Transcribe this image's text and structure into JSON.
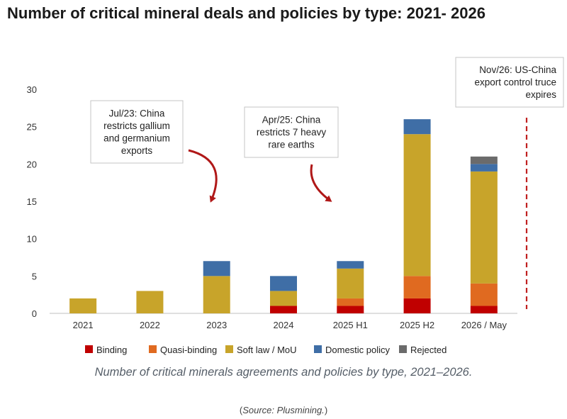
{
  "page": {
    "title": "Number of critical mineral deals and policies by type: 2021- 2026",
    "caption": "Number of critical minerals agreements and policies by type, 2021–2026.",
    "source_open": "(",
    "source_label": "Source: Plusmining.",
    "source_close": ")"
  },
  "chart_data": {
    "type": "bar",
    "stacked": true,
    "categories": [
      "2021",
      "2022",
      "2023",
      "2024",
      "2025 H1",
      "2025 H2",
      "2026 / May"
    ],
    "series": [
      {
        "name": "Binding",
        "color": "#c00000",
        "values": [
          0,
          0,
          0,
          1,
          1,
          2,
          1
        ]
      },
      {
        "name": "Quasi-binding",
        "color": "#e06a20",
        "values": [
          0,
          0,
          0,
          0,
          1,
          3,
          3
        ]
      },
      {
        "name": "Soft law / MoU",
        "color": "#c8a42a",
        "values": [
          2,
          3,
          5,
          2,
          4,
          19,
          15
        ]
      },
      {
        "name": "Domestic policy",
        "color": "#3f6ea6",
        "values": [
          0,
          0,
          2,
          2,
          1,
          2,
          1
        ]
      },
      {
        "name": "Rejected",
        "color": "#6b6b6b",
        "values": [
          0,
          0,
          0,
          0,
          0,
          0,
          1
        ]
      }
    ],
    "ylim": [
      0,
      30
    ],
    "yticks": [
      0,
      5,
      10,
      15,
      20,
      25,
      30
    ],
    "grid": false,
    "legend": "bottom",
    "annotations": [
      {
        "lines": [
          "Jul/23: China",
          "restricts gallium",
          "and germanium",
          "exports"
        ],
        "points_to": "2023"
      },
      {
        "lines": [
          "Apr/25: China",
          "restricts 7 heavy",
          "rare earths"
        ],
        "points_to": "2025 H1"
      },
      {
        "lines": [
          "Nov/26: US-China",
          "export control truce",
          "expires"
        ],
        "marker": "dashed vertical line"
      }
    ]
  }
}
